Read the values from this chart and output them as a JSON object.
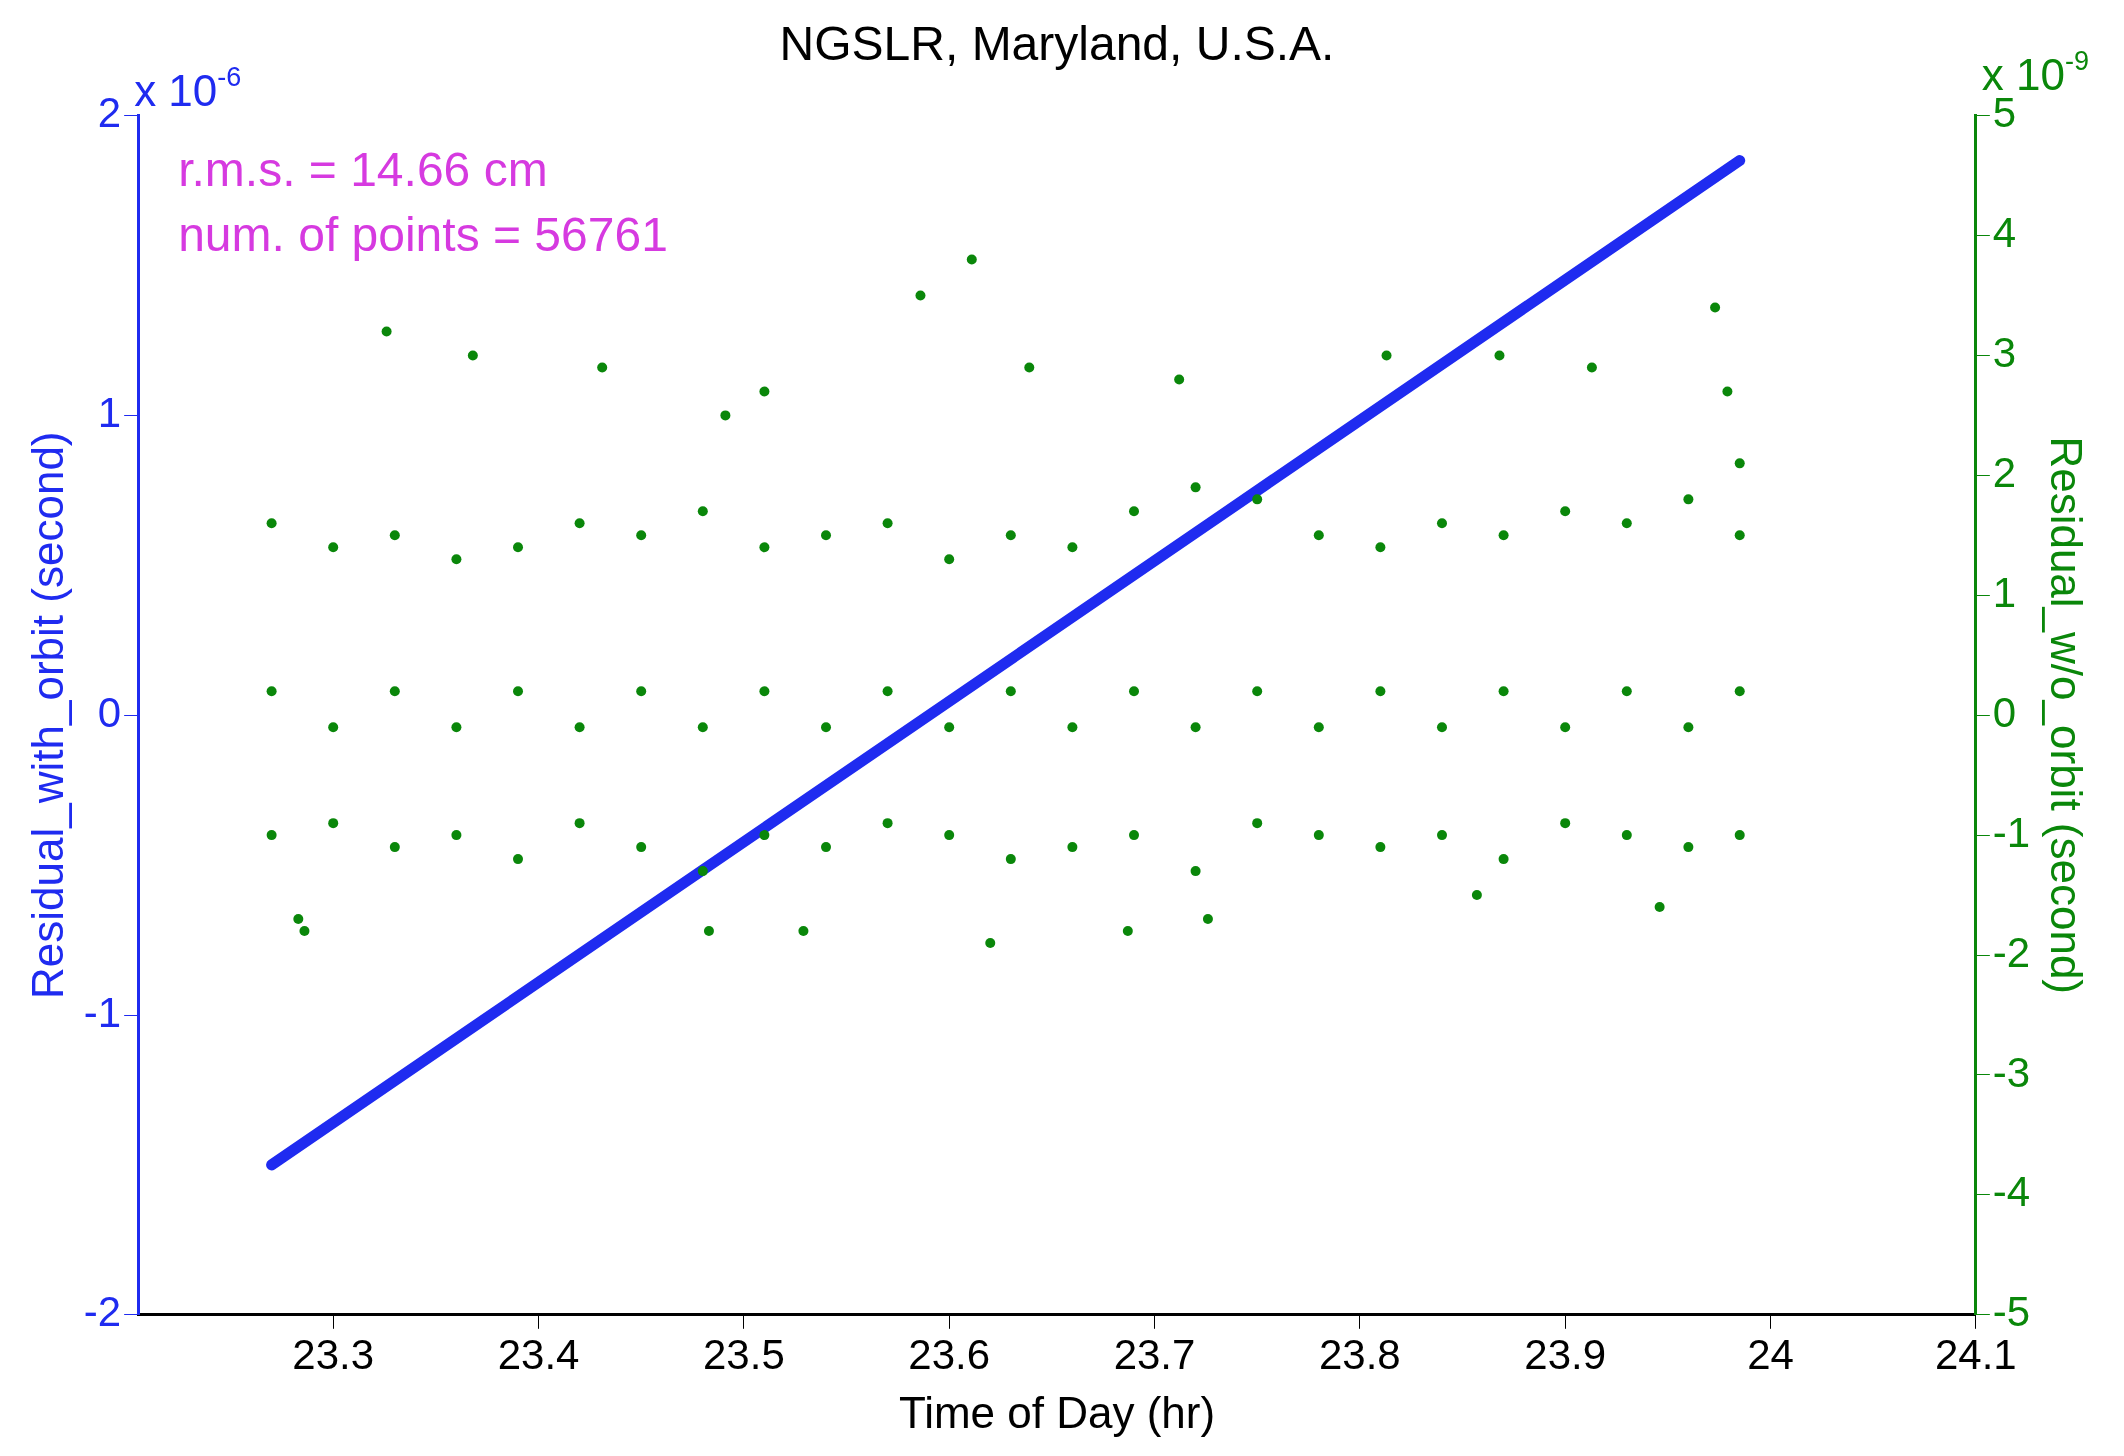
{
  "chart_data": {
    "type": "scatter",
    "title": "NGSLR, Maryland, U.S.A.",
    "xlabel": "Time of Day (hr)",
    "ylabel": "Residual_with_orbit (second)",
    "y2label": "Residual_w/o_orbit (second)",
    "annotations": [
      "r.m.s. = 14.66 cm",
      "num. of points = 56761",
      "x 10$^{-6}$",
      "x 10$^{-9}$"
    ],
    "xlim": [
      23.205,
      24.1
    ],
    "xticks": [
      23.3,
      23.4,
      23.5,
      23.6,
      23.7,
      23.8,
      23.9,
      24,
      24.1
    ],
    "ylim": [
      -2,
      2
    ],
    "yticks": [
      -2,
      -1,
      0,
      1,
      2
    ],
    "y2lim": [
      -5,
      5
    ],
    "y2ticks": [
      -5,
      -4,
      -3,
      -2,
      -1,
      0,
      1,
      2,
      3,
      4,
      5
    ],
    "grid": false,
    "series": [
      {
        "type": "line",
        "axis": "y",
        "color": "#1f2bf0",
        "x": [
          23.27,
          23.985
        ],
        "values": [
          -1.5,
          1.85
        ]
      },
      {
        "axis": "y2",
        "marker": "circle",
        "color": "#0a870a",
        "x": [
          23.611,
          23.586,
          23.326,
          23.368,
          23.431,
          23.973,
          23.979,
          23.712,
          23.639,
          23.813,
          23.868,
          23.913,
          23.286,
          23.283,
          23.483,
          23.529,
          23.62,
          23.687,
          23.726,
          23.946,
          23.857,
          23.491,
          23.51,
          23.985,
          23.27,
          23.3,
          23.33,
          23.36,
          23.39,
          23.42,
          23.45,
          23.48,
          23.51,
          23.54,
          23.57,
          23.6,
          23.63,
          23.66,
          23.69,
          23.72,
          23.75,
          23.78,
          23.81,
          23.84,
          23.87,
          23.9,
          23.93,
          23.96,
          23.985,
          23.27,
          23.3,
          23.33,
          23.36,
          23.39,
          23.42,
          23.45,
          23.48,
          23.51,
          23.54,
          23.57,
          23.6,
          23.63,
          23.66,
          23.69,
          23.72,
          23.75,
          23.78,
          23.81,
          23.84,
          23.87,
          23.9,
          23.93,
          23.96,
          23.985,
          23.27,
          23.3,
          23.33,
          23.36,
          23.39,
          23.42,
          23.45,
          23.48,
          23.51,
          23.54,
          23.57,
          23.6,
          23.63,
          23.66,
          23.69,
          23.72,
          23.75,
          23.78,
          23.81,
          23.84,
          23.87,
          23.9,
          23.93,
          23.96,
          23.985
        ],
        "values": [
          3.8,
          3.5,
          3.2,
          3,
          2.9,
          3.4,
          2.7,
          2.8,
          2.9,
          3,
          3,
          2.9,
          -1.8,
          -1.7,
          -1.8,
          -1.8,
          -1.9,
          -1.8,
          -1.7,
          -1.6,
          -1.5,
          2.5,
          2.7,
          2.1,
          1.6,
          1.4,
          1.5,
          1.3,
          1.4,
          1.6,
          1.5,
          1.7,
          1.4,
          1.5,
          1.6,
          1.3,
          1.5,
          1.4,
          1.7,
          1.9,
          1.8,
          1.5,
          1.4,
          1.6,
          1.5,
          1.7,
          1.6,
          1.8,
          1.5,
          0.2,
          -0.1,
          0.2,
          -0.1,
          0.2,
          -0.1,
          0.2,
          -0.1,
          0.2,
          -0.1,
          0.2,
          -0.1,
          0.2,
          -0.1,
          0.2,
          -0.1,
          0.2,
          -0.1,
          0.2,
          -0.1,
          0.2,
          -0.1,
          0.2,
          -0.1,
          0.2,
          -1,
          -0.9,
          -1.1,
          -1,
          -1.2,
          -0.9,
          -1.1,
          -1.3,
          -1,
          -1.1,
          -0.9,
          -1,
          -1.2,
          -1.1,
          -1,
          -1.3,
          -0.9,
          -1,
          -1.1,
          -1,
          -1.2,
          -0.9,
          -1,
          -1.1,
          -1
        ]
      }
    ]
  }
}
